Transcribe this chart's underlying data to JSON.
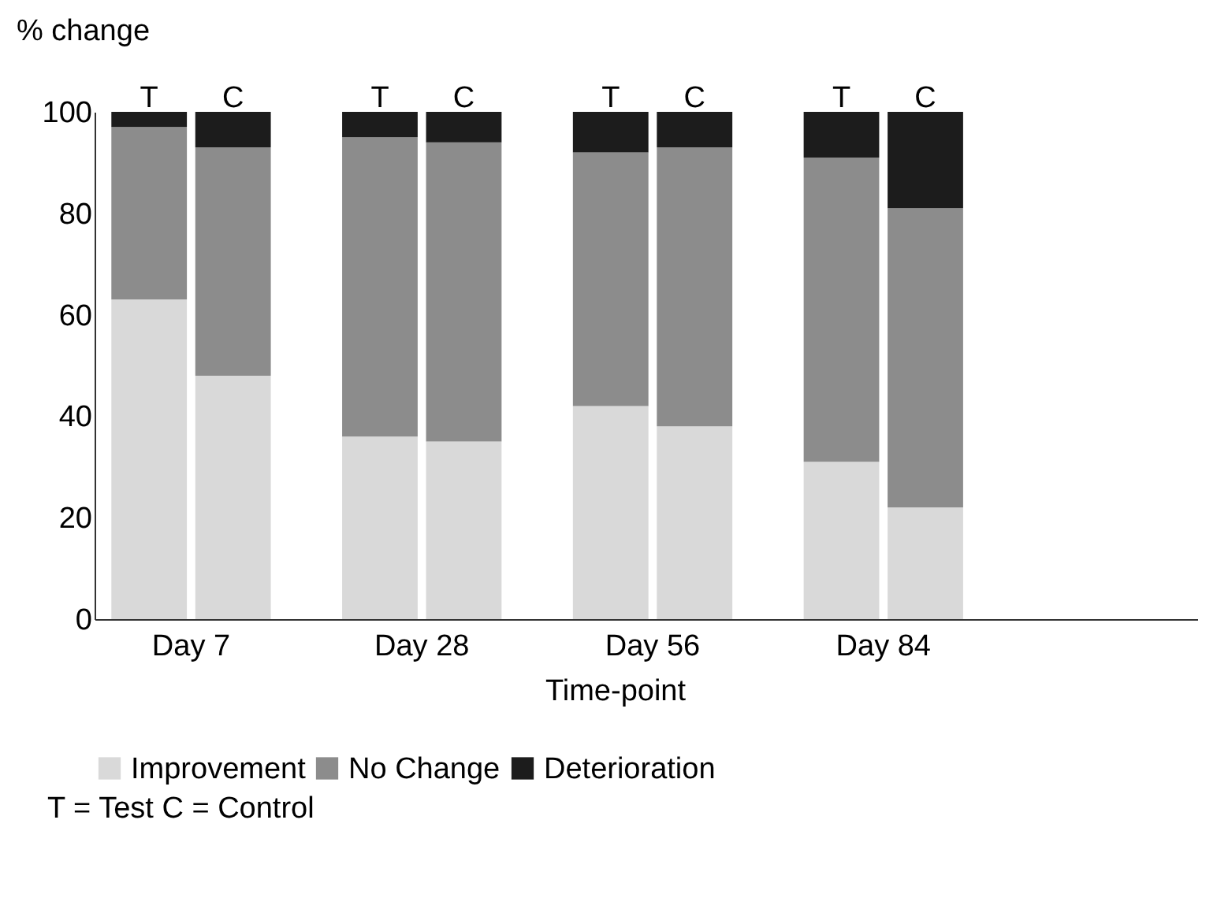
{
  "chart_data": {
    "type": "bar",
    "stacked": true,
    "ylabel": "% change",
    "xlabel": "Time-point",
    "categories": [
      "T",
      "C",
      "T",
      "C",
      "T",
      "C",
      "T",
      "C"
    ],
    "series": [
      {
        "name": "Improvement",
        "color": "#d9d9d9",
        "values": [
          63,
          48,
          36,
          35,
          42,
          38,
          31,
          22
        ]
      },
      {
        "name": "No Change",
        "color": "#8c8c8c",
        "values": [
          34,
          45,
          59,
          59,
          50,
          55,
          60,
          59
        ]
      },
      {
        "name": "Deterioration",
        "color": "#1c1c1c",
        "values": [
          3,
          7,
          5,
          6,
          8,
          7,
          9,
          19
        ]
      }
    ],
    "ylim": [
      0,
      100
    ],
    "yticks": [
      0,
      20,
      40,
      60,
      80,
      100
    ],
    "grid": false,
    "legend": "bottom",
    "annotations": [
      "Day 7",
      "Day 28",
      "Day 56",
      "Day 84",
      "T = Test   C = Control"
    ]
  }
}
